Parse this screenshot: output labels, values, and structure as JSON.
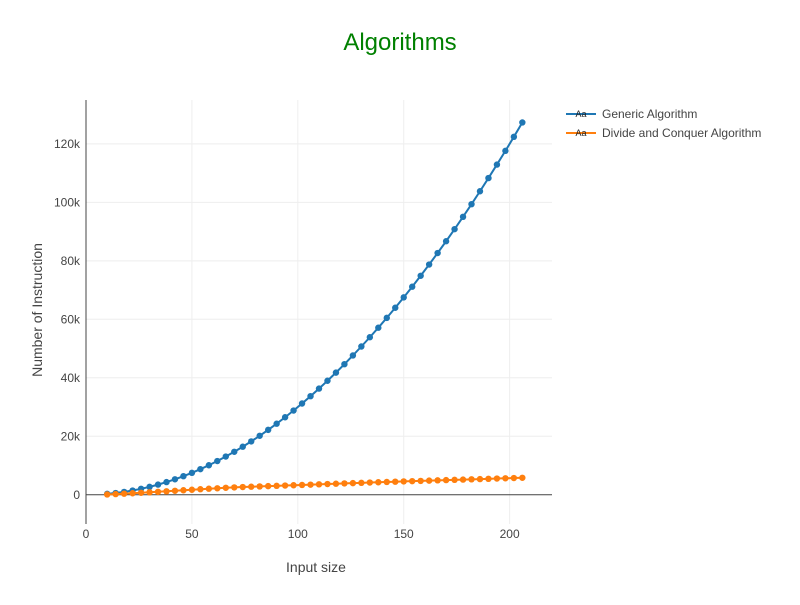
{
  "colors": {
    "background": "#ffffff",
    "title": "#008000",
    "grid": "#eeeeee",
    "axis_line": "#444444",
    "zero_line": "#444444",
    "text": "#444444"
  },
  "chart_data": {
    "type": "line",
    "title": "Algorithms",
    "xlabel": "Input size",
    "ylabel": "Number of Instruction",
    "xlim": [
      0,
      220
    ],
    "ylim": [
      -10000,
      135000
    ],
    "xticks": [
      0,
      50,
      100,
      150,
      200
    ],
    "xtick_labels": [
      "0",
      "50",
      "100",
      "150",
      "200"
    ],
    "yticks": [
      0,
      20000,
      40000,
      60000,
      80000,
      100000,
      120000
    ],
    "ytick_labels": [
      "0",
      "20k",
      "40k",
      "60k",
      "80k",
      "100k",
      "120k"
    ],
    "grid": true,
    "legend_position": "top-right, outside plot",
    "legend_symbol_text": "Aa",
    "x": [
      10,
      14,
      18,
      22,
      26,
      30,
      34,
      38,
      42,
      46,
      50,
      54,
      58,
      62,
      66,
      70,
      74,
      78,
      82,
      86,
      90,
      94,
      98,
      102,
      106,
      110,
      114,
      118,
      122,
      126,
      130,
      134,
      138,
      142,
      146,
      150,
      154,
      158,
      162,
      166,
      170,
      174,
      178,
      182,
      186,
      190,
      194,
      198,
      202,
      206
    ],
    "series": [
      {
        "name": "Generic Algorithm",
        "color": "#1f77b4",
        "values": [
          300,
          590,
          970,
          1450,
          2030,
          2700,
          3470,
          4330,
          5290,
          6350,
          7500,
          8750,
          10090,
          11530,
          13070,
          14700,
          16430,
          18250,
          20170,
          22190,
          24300,
          26510,
          28810,
          31210,
          33710,
          36300,
          38990,
          41770,
          44650,
          47630,
          50700,
          53870,
          57130,
          60490,
          63950,
          67500,
          71150,
          74890,
          78730,
          82670,
          86700,
          90830,
          95050,
          99370,
          103790,
          108300,
          112910,
          117610,
          122410,
          127310
        ]
      },
      {
        "name": "Divide and Conquer Algorithm",
        "color": "#ff7f0e",
        "values": [
          100,
          230,
          370,
          520,
          670,
          840,
          1010,
          1180,
          1360,
          1540,
          1710,
          1890,
          2060,
          2220,
          2380,
          2520,
          2640,
          2750,
          2850,
          2950,
          3050,
          3150,
          3250,
          3350,
          3460,
          3570,
          3670,
          3780,
          3880,
          3980,
          4080,
          4180,
          4280,
          4380,
          4470,
          4560,
          4650,
          4740,
          4830,
          4930,
          5020,
          5100,
          5180,
          5280,
          5360,
          5450,
          5550,
          5630,
          5720,
          5800
        ]
      }
    ]
  }
}
